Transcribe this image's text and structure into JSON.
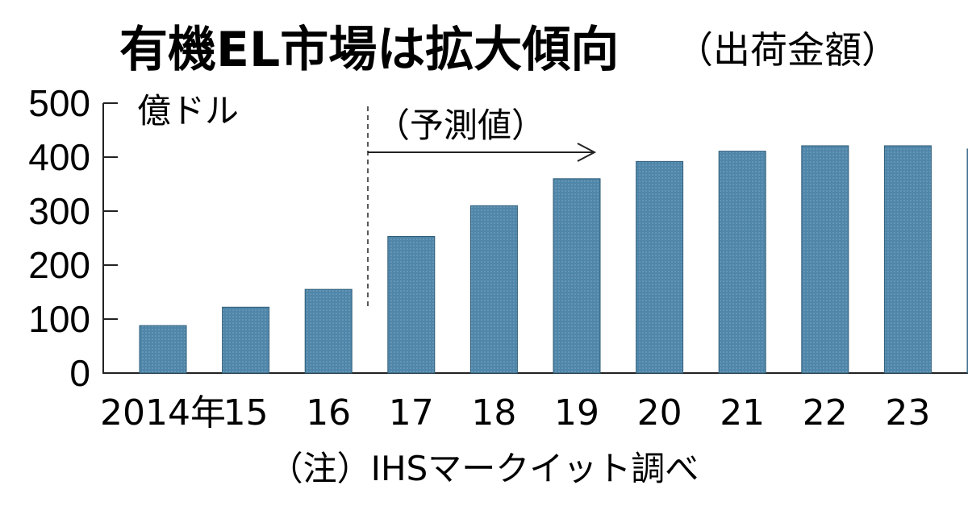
{
  "chart_data": {
    "type": "bar",
    "title": "有機EL市場は拡大傾向",
    "subtitle": "（出荷金額）",
    "unit_label": "億ドル",
    "forecast_label": "（予測値）",
    "note": "（注）IHSマークイット調べ",
    "categories": [
      "2014年",
      "15",
      "16",
      "17",
      "18",
      "19",
      "20",
      "21",
      "22",
      "23"
    ],
    "values": [
      88,
      122,
      155,
      253,
      310,
      360,
      392,
      411,
      421,
      421
    ],
    "partial_next_value": 415,
    "forecast_start_index": 3,
    "yticks": [
      "0",
      "100",
      "200",
      "300",
      "400",
      "500"
    ],
    "ylim": [
      0,
      500
    ],
    "bar_color": "#4f86a9",
    "grid": false
  }
}
